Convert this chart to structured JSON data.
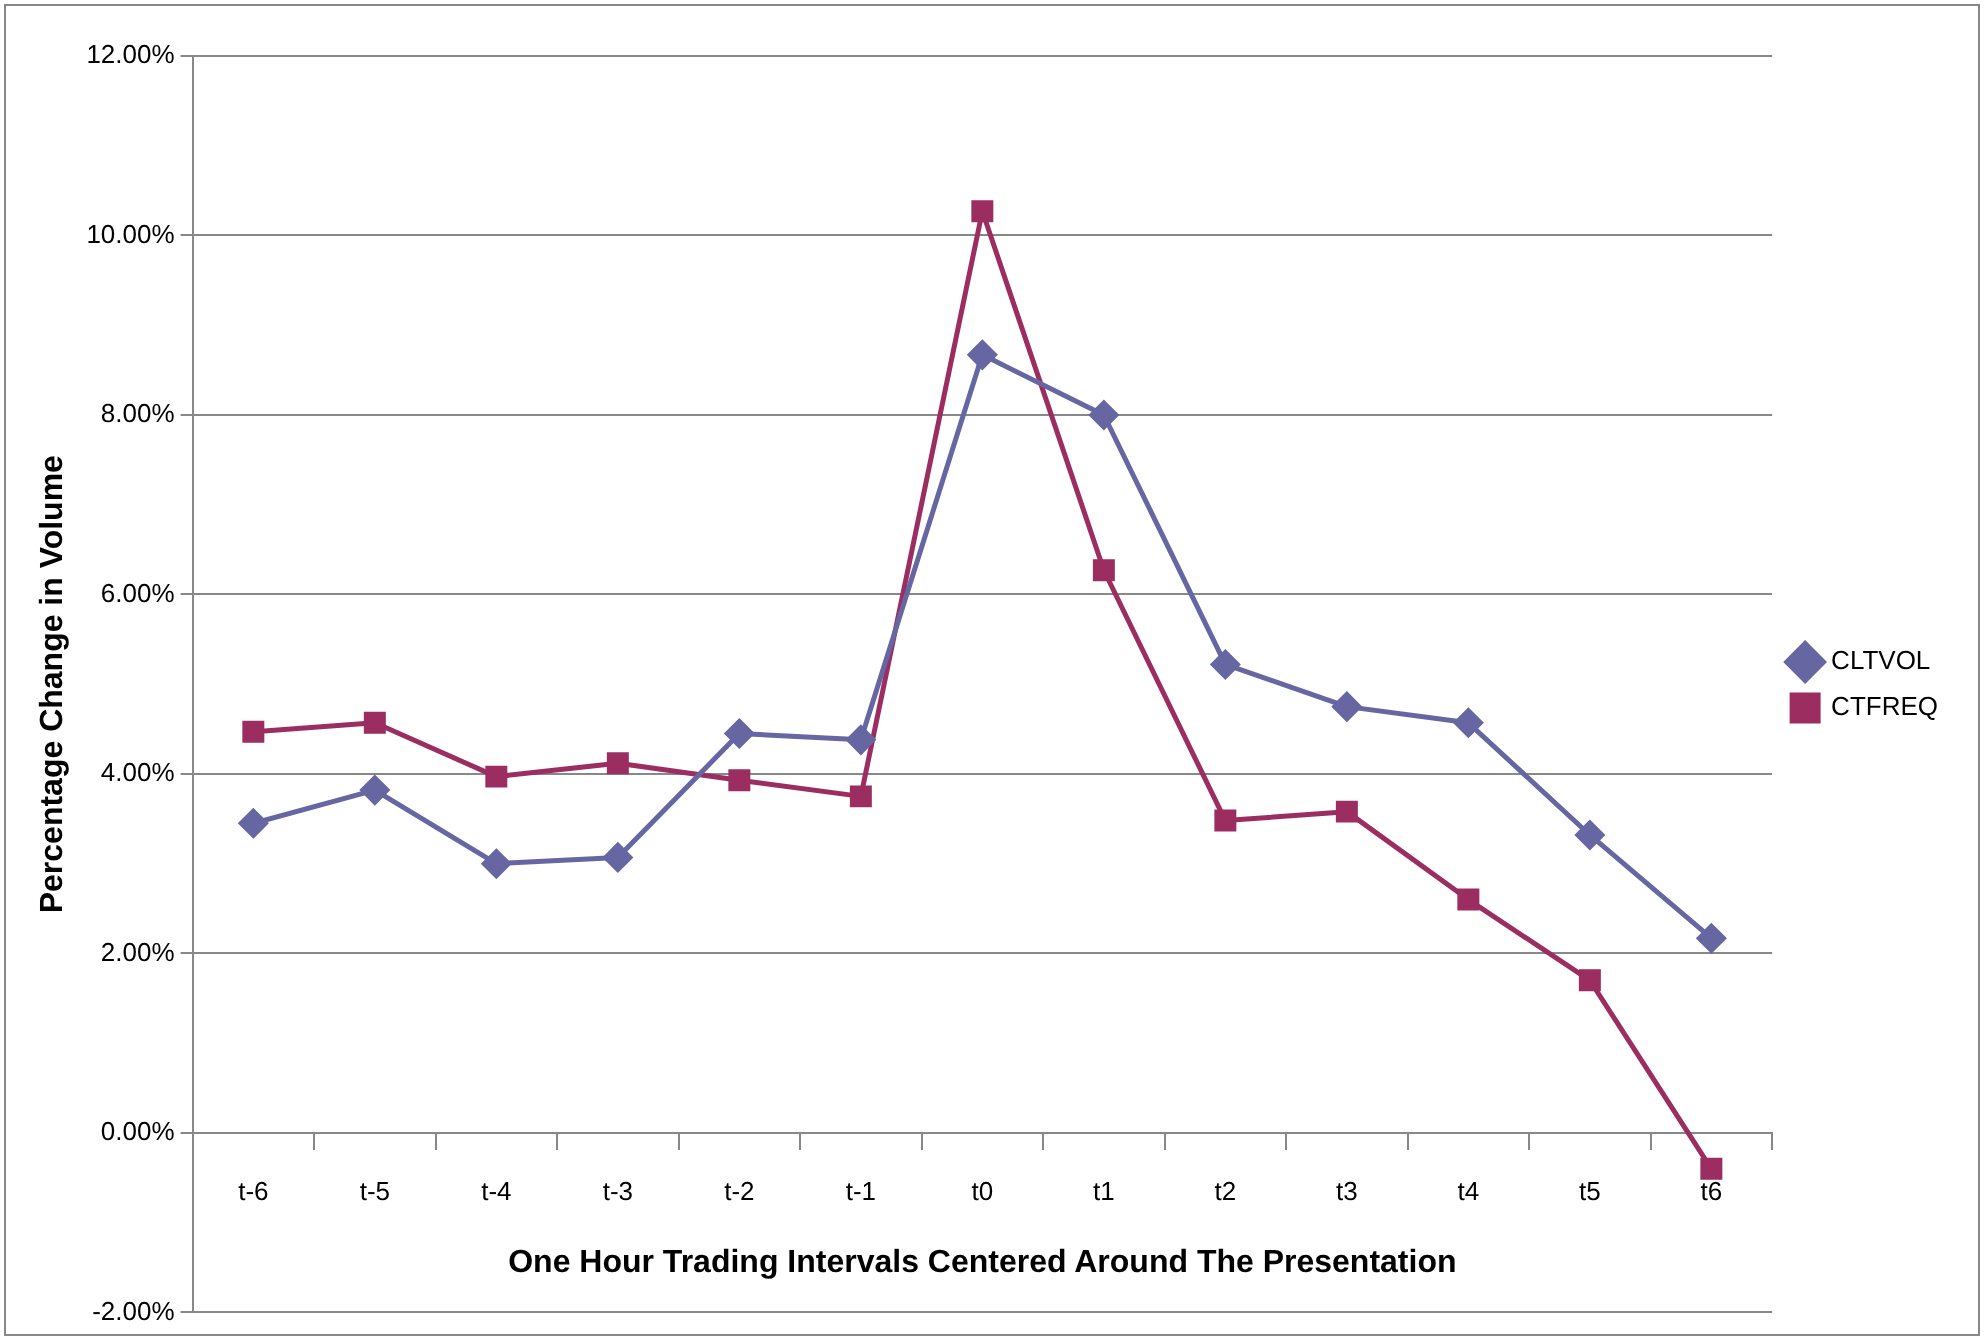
{
  "chart_data": {
    "type": "line",
    "xlabel": "One Hour Trading Intervals Centered Around The Presentation",
    "ylabel": "Percentage Change in Volume",
    "categories": [
      "t-6",
      "t-5",
      "t-4",
      "t-3",
      "t-2",
      "t-1",
      "t0",
      "t1",
      "t2",
      "t3",
      "t4",
      "t5",
      "t6"
    ],
    "series": [
      {
        "name": "CLTVOL",
        "color": "#6666a3",
        "marker": "diamond",
        "values": [
          3.45,
          3.82,
          3.0,
          3.07,
          4.45,
          4.38,
          8.67,
          8.0,
          5.22,
          4.75,
          4.57,
          3.32,
          2.17
        ]
      },
      {
        "name": "CTFREQ",
        "color": "#9b2d61",
        "marker": "square",
        "values": [
          4.47,
          4.57,
          3.97,
          4.12,
          3.93,
          3.75,
          10.27,
          6.27,
          3.48,
          3.58,
          2.6,
          1.7,
          -0.4
        ]
      }
    ],
    "ylim": [
      -2,
      12
    ],
    "yticks": [
      {
        "value": -2,
        "label": "-2.00%"
      },
      {
        "value": 0,
        "label": "0.00%"
      },
      {
        "value": 2,
        "label": "2.00%"
      },
      {
        "value": 4,
        "label": "4.00%"
      },
      {
        "value": 6,
        "label": "6.00%"
      },
      {
        "value": 8,
        "label": "8.00%"
      },
      {
        "value": 10,
        "label": "10.00%"
      },
      {
        "value": 12,
        "label": "12.00%"
      }
    ],
    "grid": "y",
    "legend": "right",
    "line_style": "solid"
  }
}
